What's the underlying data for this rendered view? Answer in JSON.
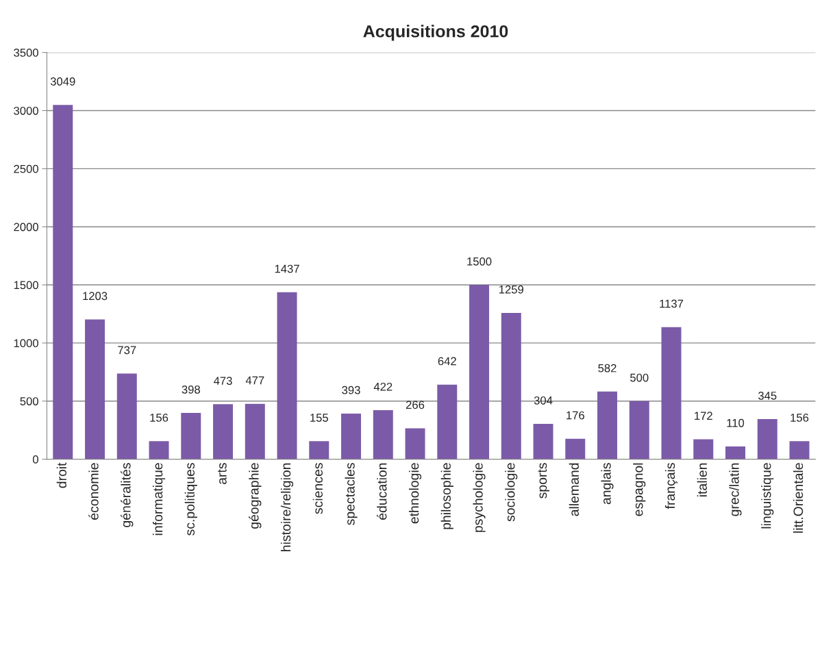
{
  "chart_data": {
    "type": "bar",
    "title": "Acquisitions 2010",
    "categories": [
      "droit",
      "économie",
      "généralités",
      "informatique",
      "sc.politiques",
      "arts",
      "géographie",
      "histoire/religion",
      "sciences",
      "spectacles",
      "éducation",
      "ethnologie",
      "philosophie",
      "psychologie",
      "sociologie",
      "sports",
      "allemand",
      "anglais",
      "espagnol",
      "français",
      "italien",
      "grec/latin",
      "linguistique",
      "litt.Orientale"
    ],
    "values": [
      3049,
      1203,
      737,
      156,
      398,
      473,
      477,
      1437,
      155,
      393,
      422,
      266,
      642,
      1500,
      1259,
      304,
      176,
      582,
      500,
      1137,
      172,
      110,
      345,
      156
    ],
    "color": "#7b5ba8",
    "ylim": [
      0,
      3500
    ],
    "yticks": [
      0,
      500,
      1000,
      1500,
      2000,
      2500,
      3000,
      3500
    ],
    "grid": "y",
    "data_labels": true,
    "legend": false
  }
}
